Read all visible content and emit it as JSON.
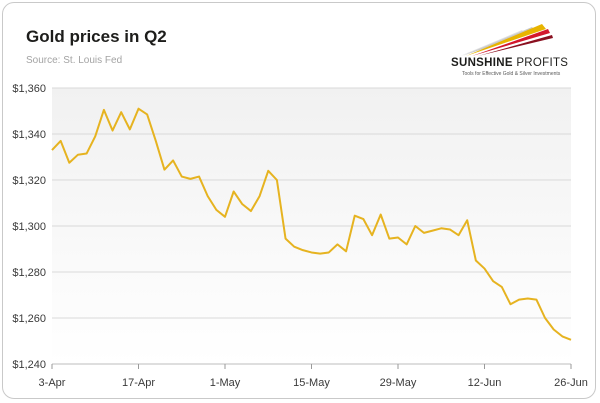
{
  "header": {
    "title": "Gold prices in Q2",
    "source": "Source: St. Louis Fed"
  },
  "logo": {
    "name_bold": "SUNSHINE",
    "name_light": " PROFITS",
    "tagline": "Tools for Effective Gold & Silver Investments"
  },
  "colors": {
    "line": "#e6b320",
    "grid": "#d9d9d9",
    "plot_bg_top": "#f1f1f1",
    "plot_bg_bottom": "#ffffff"
  },
  "chart_data": {
    "type": "line",
    "title": "Gold prices in Q2",
    "xlabel": "",
    "ylabel": "",
    "ylim": [
      1240,
      1360
    ],
    "yticks": [
      1240,
      1260,
      1280,
      1300,
      1320,
      1340,
      1360
    ],
    "ytick_labels": [
      "$1,240",
      "$1,260",
      "$1,280",
      "$1,300",
      "$1,320",
      "$1,340",
      "$1,360"
    ],
    "grid": true,
    "xtick_labels": [
      "3-Apr",
      "17-Apr",
      "1-May",
      "15-May",
      "29-May",
      "12-Jun",
      "26-Jun"
    ],
    "xtick_index": [
      0,
      10,
      20,
      30,
      40,
      50,
      60
    ],
    "series": [
      {
        "name": "",
        "values": [
          1333.0,
          1337.0,
          1327.5,
          1331.0,
          1331.5,
          1339.0,
          1350.5,
          1341.5,
          1349.5,
          1342.0,
          1351.0,
          1348.5,
          1337.0,
          1324.5,
          1328.5,
          1321.5,
          1320.5,
          1321.5,
          1313.0,
          1307.0,
          1304.0,
          1315.0,
          1309.5,
          1306.5,
          1313.0,
          1324.0,
          1320.0,
          1294.5,
          1291.0,
          1289.5,
          1288.5,
          1288.0,
          1288.5,
          1292.0,
          1289.0,
          1304.5,
          1303.0,
          1296.0,
          1305.0,
          1294.5,
          1295.0,
          1292.0,
          1300.0,
          1297.0,
          1298.0,
          1299.0,
          1298.5,
          1296.0,
          1302.5,
          1285.0,
          1281.5,
          1276.0,
          1273.5,
          1266.0,
          1268.0,
          1268.5,
          1268.0,
          1260.0,
          1255.0,
          1252.0,
          1250.5
        ]
      }
    ]
  }
}
